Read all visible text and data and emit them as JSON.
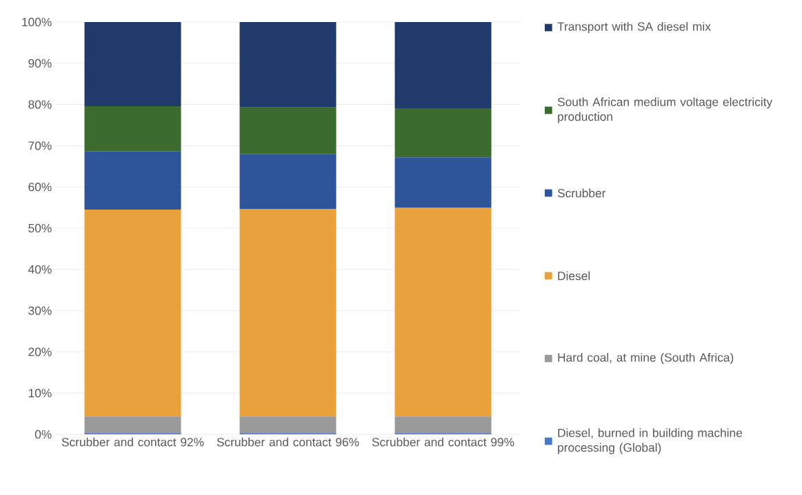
{
  "chart_data": {
    "type": "bar",
    "stacked": true,
    "categories": [
      "Scrubber and contact 92%",
      "Scrubber and contact 96%",
      "Scrubber and contact 99%"
    ],
    "series": [
      {
        "name": "Diesel, burned in building machine processing (Global)",
        "color": "#4a78c8",
        "values": [
          0.3,
          0.3,
          0.3
        ]
      },
      {
        "name": "Hard coal, at mine (South Africa)",
        "color": "#9a9a9a",
        "values": [
          4.0,
          4.0,
          4.0
        ]
      },
      {
        "name": "Diesel",
        "color": "#e9a23b",
        "values": [
          50.2,
          50.4,
          50.7
        ]
      },
      {
        "name": "Scrubber",
        "color": "#2e5599",
        "values": [
          14.2,
          13.3,
          12.2
        ]
      },
      {
        "name": "South African medium voltage electricity production",
        "color": "#3b6b2e",
        "values": [
          10.9,
          11.3,
          11.9
        ]
      },
      {
        "name": "Transport with SA diesel mix",
        "color": "#1f3a6b",
        "values": [
          20.4,
          20.7,
          20.9
        ]
      }
    ],
    "ylim": [
      0,
      100
    ],
    "yticks": [
      {
        "value": 0,
        "label": "0%"
      },
      {
        "value": 10,
        "label": "10%"
      },
      {
        "value": 20,
        "label": "20%"
      },
      {
        "value": 30,
        "label": "30%"
      },
      {
        "value": 40,
        "label": "40%"
      },
      {
        "value": 50,
        "label": "50%"
      },
      {
        "value": 60,
        "label": "60%"
      },
      {
        "value": 70,
        "label": "70%"
      },
      {
        "value": 80,
        "label": "80%"
      },
      {
        "value": 90,
        "label": "90%"
      },
      {
        "value": 100,
        "label": "100%"
      }
    ],
    "grid": "y",
    "legend": "right"
  }
}
